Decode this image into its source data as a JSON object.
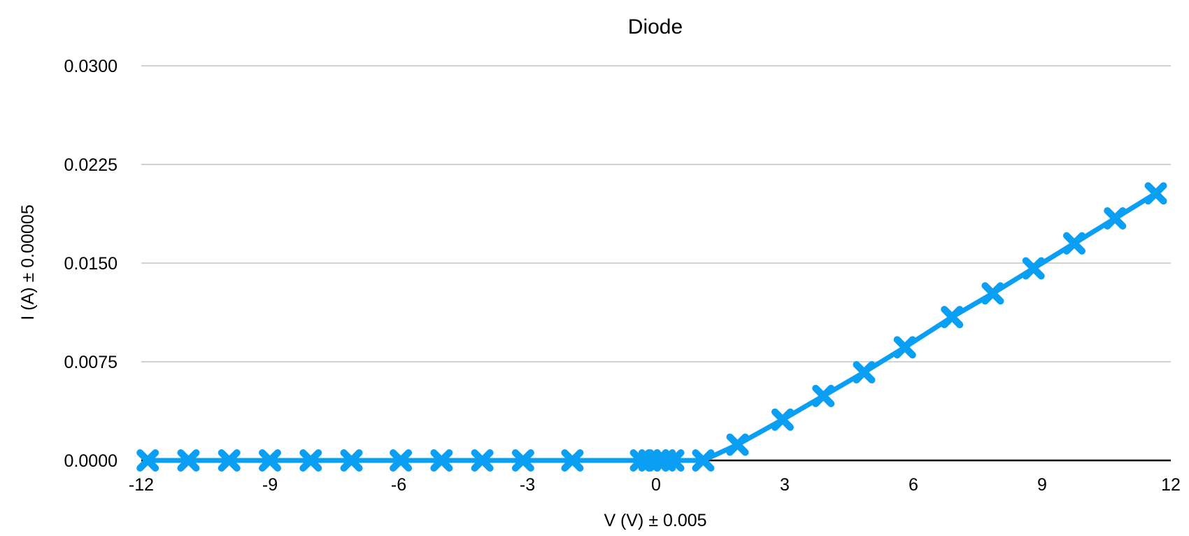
{
  "chart_data": {
    "type": "line",
    "title": "Diode",
    "xlabel": "V (V) ± 0.005",
    "ylabel": "I (A) ± 0.00005",
    "xlim": [
      -12,
      12
    ],
    "ylim": [
      0,
      0.03
    ],
    "x_ticks": [
      "-12",
      "-9",
      "-6",
      "-3",
      "0",
      "3",
      "6",
      "9",
      "12"
    ],
    "y_ticks": [
      "0.0000",
      "0.0075",
      "0.0150",
      "0.0225",
      "0.0300"
    ],
    "grid": "horizontal",
    "legend": "none",
    "series": [
      {
        "color": "#0a9ff2",
        "marker": "x",
        "x": [
          -11.85,
          -10.9,
          -9.95,
          -9.0,
          -8.05,
          -7.1,
          -5.95,
          -5.0,
          -4.05,
          -3.1,
          -1.95,
          -0.35,
          -0.15,
          0.05,
          0.2,
          0.4,
          1.1,
          1.9,
          2.95,
          3.9,
          4.85,
          5.8,
          6.9,
          7.85,
          8.8,
          9.75,
          10.7,
          11.65
        ],
        "y": [
          0.0,
          0.0,
          0.0,
          0.0,
          0.0,
          0.0,
          0.0,
          0.0,
          0.0,
          0.0,
          0.0,
          0.0,
          0.0,
          0.0,
          0.0,
          0.0,
          0.0,
          0.0012,
          0.0031,
          0.0049,
          0.0067,
          0.0086,
          0.0109,
          0.0127,
          0.0146,
          0.0165,
          0.0184,
          0.0203
        ]
      }
    ]
  }
}
